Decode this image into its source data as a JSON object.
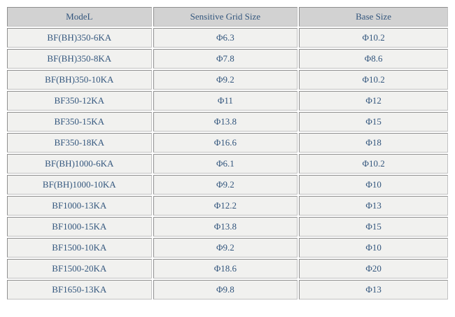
{
  "colors": {
    "header_background": "#d2d2d2",
    "cell_background": "#f1f1ef",
    "border": "#a3a3a3",
    "text": "#33567d",
    "page_background": "#ffffff"
  },
  "table": {
    "columns": [
      "ModeL",
      "Sensitive Grid Size",
      "Base Size"
    ],
    "rows": [
      {
        "model": "BF(BH)350-6KA",
        "sensitive_grid_size": "Φ6.3",
        "base_size": "Φ10.2"
      },
      {
        "model": "BF(BH)350-8KA",
        "sensitive_grid_size": "Φ7.8",
        "base_size": "Φ8.6"
      },
      {
        "model": "BF(BH)350-10KA",
        "sensitive_grid_size": "Φ9.2",
        "base_size": "Φ10.2"
      },
      {
        "model": "BF350-12KA",
        "sensitive_grid_size": "Φ11",
        "base_size": "Φ12"
      },
      {
        "model": "BF350-15KA",
        "sensitive_grid_size": "Φ13.8",
        "base_size": "Φ15"
      },
      {
        "model": "BF350-18KA",
        "sensitive_grid_size": "Φ16.6",
        "base_size": "Φ18"
      },
      {
        "model": "BF(BH)1000-6KA",
        "sensitive_grid_size": "Φ6.1",
        "base_size": "Φ10.2"
      },
      {
        "model": "BF(BH)1000-10KA",
        "sensitive_grid_size": "Φ9.2",
        "base_size": "Φ10"
      },
      {
        "model": "BF1000-13KA",
        "sensitive_grid_size": "Φ12.2",
        "base_size": "Φ13"
      },
      {
        "model": "BF1000-15KA",
        "sensitive_grid_size": "Φ13.8",
        "base_size": "Φ15"
      },
      {
        "model": "BF1500-10KA",
        "sensitive_grid_size": "Φ9.2",
        "base_size": "Φ10"
      },
      {
        "model": "BF1500-20KA",
        "sensitive_grid_size": "Φ18.6",
        "base_size": "Φ20"
      },
      {
        "model": "BF1650-13KA",
        "sensitive_grid_size": "Φ9.8",
        "base_size": "Φ13"
      }
    ]
  }
}
